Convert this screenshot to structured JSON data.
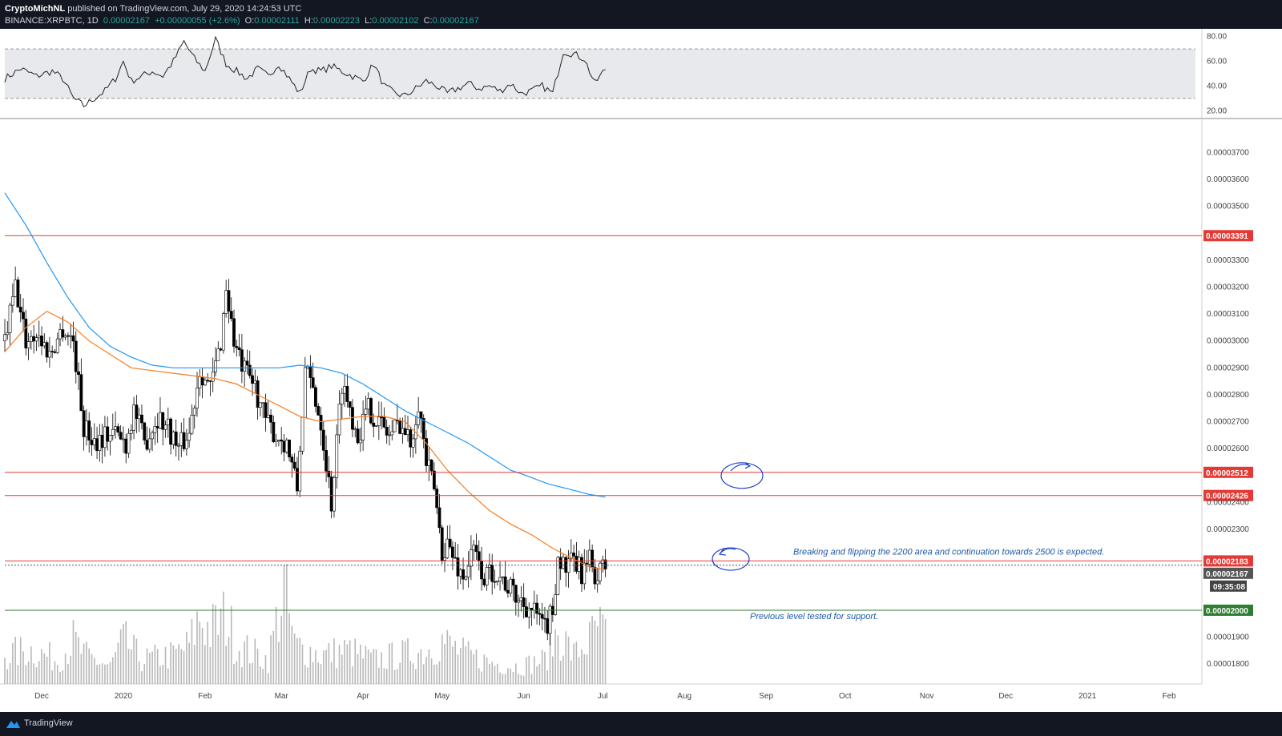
{
  "header": {
    "author": "CryptoMichNL",
    "published": "published on TradingView.com, July 29, 2020 14:24:53 UTC",
    "symbol": "BINANCE:XRPBTC, 1D",
    "last": "0.00002167",
    "change": "+0.00000055 (+2.6%)",
    "o_label": "O:",
    "o_value": "0.00002111",
    "h_label": "H:",
    "h_value": "0.00002223",
    "l_label": "L:",
    "l_value": "0.00002102",
    "c_label": "C:",
    "c_value": "0.00002167"
  },
  "footer": {
    "brand": "TradingView"
  },
  "colors": {
    "bull": "#ffffff",
    "bear": "#000000",
    "ma_fast": "#f57c20",
    "ma_slow": "#2196f3",
    "resistance": "#e53935",
    "support": "#2e7d32",
    "current": "#555555",
    "rsi_band": "#e8e9ec",
    "annotation": "#1f3fcf"
  },
  "chart_data": {
    "type": "candlestick",
    "price_axis": {
      "min": 1.75e-05,
      "max": 3.82e-05,
      "ticks": [
        "0.00003700",
        "0.00003600",
        "0.00003500",
        "0.00003300",
        "0.00003200",
        "0.00003100",
        "0.00003000",
        "0.00002900",
        "0.00002800",
        "0.00002700",
        "0.00002600",
        "0.00002400",
        "0.00002300",
        "0.00001900",
        "0.00001800"
      ],
      "tick_values": [
        3.7e-05,
        3.6e-05,
        3.5e-05,
        3.3e-05,
        3.2e-05,
        3.1e-05,
        3e-05,
        2.9e-05,
        2.8e-05,
        2.7e-05,
        2.6e-05,
        2.4e-05,
        2.3e-05,
        1.9e-05,
        1.8e-05
      ]
    },
    "time_axis": {
      "labels": [
        "Dec",
        "2020",
        "Feb",
        "Mar",
        "Apr",
        "May",
        "Jun",
        "Jul",
        "Aug",
        "Sep",
        "Oct",
        "Nov",
        "Dec",
        "2021",
        "Feb"
      ],
      "label_day_index": [
        14,
        45,
        76,
        105,
        136,
        166,
        197,
        227,
        258,
        289,
        319,
        350,
        380,
        411,
        442
      ]
    },
    "levels": [
      {
        "label": "0.00003391",
        "value": 3.391e-05,
        "kind": "resistance"
      },
      {
        "label": "0.00002512",
        "value": 2.512e-05,
        "kind": "resistance"
      },
      {
        "label": "0.00002426",
        "value": 2.426e-05,
        "kind": "resistance"
      },
      {
        "label": "0.00002183",
        "value": 2.183e-05,
        "kind": "resistance"
      },
      {
        "label": "0.00002000",
        "value": 2e-05,
        "kind": "support"
      }
    ],
    "current_price": {
      "label": "0.00002167",
      "value": 2.167e-05,
      "countdown": "09:35:08"
    },
    "annotations": [
      {
        "text": "Breaking and flipping the 2200 area and continuation towards 2500 is expected.",
        "price": 2.21e-05
      },
      {
        "text": "Previous level tested for support.",
        "price": 1.97e-05
      }
    ],
    "close_anchors": [
      [
        0,
        3e-05
      ],
      [
        4,
        3.2e-05
      ],
      [
        8,
        3e-05
      ],
      [
        12,
        3.03e-05
      ],
      [
        17,
        2.95e-05
      ],
      [
        22,
        3.05e-05
      ],
      [
        26,
        3e-05
      ],
      [
        30,
        2.68e-05
      ],
      [
        34,
        2.63e-05
      ],
      [
        38,
        2.65e-05
      ],
      [
        42,
        2.66e-05
      ],
      [
        46,
        2.62e-05
      ],
      [
        49,
        2.75e-05
      ],
      [
        53,
        2.62e-05
      ],
      [
        58,
        2.72e-05
      ],
      [
        62,
        2.68e-05
      ],
      [
        66,
        2.6e-05
      ],
      [
        70,
        2.66e-05
      ],
      [
        74,
        2.9e-05
      ],
      [
        78,
        2.82e-05
      ],
      [
        82,
        3e-05
      ],
      [
        84,
        3.2e-05
      ],
      [
        87,
        3e-05
      ],
      [
        90,
        2.9e-05
      ],
      [
        95,
        2.83e-05
      ],
      [
        99,
        2.7e-05
      ],
      [
        103,
        2.65e-05
      ],
      [
        107,
        2.62e-05
      ],
      [
        111,
        2.45e-05
      ],
      [
        114,
        2.89e-05
      ],
      [
        117,
        2.82e-05
      ],
      [
        120,
        2.7e-05
      ],
      [
        124,
        2.4e-05
      ],
      [
        128,
        2.85e-05
      ],
      [
        131,
        2.75e-05
      ],
      [
        134,
        2.65e-05
      ],
      [
        138,
        2.75e-05
      ],
      [
        142,
        2.7e-05
      ],
      [
        146,
        2.65e-05
      ],
      [
        150,
        2.7e-05
      ],
      [
        154,
        2.62e-05
      ],
      [
        157,
        2.78e-05
      ],
      [
        160,
        2.55e-05
      ],
      [
        163,
        2.45e-05
      ],
      [
        166,
        2.22e-05
      ],
      [
        168,
        2.25e-05
      ],
      [
        170,
        2.2e-05
      ],
      [
        174,
        2.12e-05
      ],
      [
        178,
        2.22e-05
      ],
      [
        182,
        2.12e-05
      ],
      [
        186,
        2.15e-05
      ],
      [
        190,
        2.1e-05
      ],
      [
        194,
        2.05e-05
      ],
      [
        198,
        2.02e-05
      ],
      [
        202,
        1.98e-05
      ],
      [
        204,
        1.93e-05
      ],
      [
        206,
        1.95e-05
      ],
      [
        208,
        2e-05
      ],
      [
        210,
        2.2e-05
      ],
      [
        213,
        2.15e-05
      ],
      [
        216,
        2.18e-05
      ],
      [
        219,
        2.14e-05
      ],
      [
        222,
        2.18e-05
      ],
      [
        225,
        2.12e-05
      ],
      [
        227,
        2.16e-05
      ]
    ],
    "ma_fast": [
      [
        0,
        2.96e-05
      ],
      [
        8,
        3.05e-05
      ],
      [
        16,
        3.11e-05
      ],
      [
        24,
        3.07e-05
      ],
      [
        32,
        3e-05
      ],
      [
        40,
        2.95e-05
      ],
      [
        48,
        2.9e-05
      ],
      [
        56,
        2.89e-05
      ],
      [
        64,
        2.88e-05
      ],
      [
        72,
        2.87e-05
      ],
      [
        80,
        2.86e-05
      ],
      [
        88,
        2.84e-05
      ],
      [
        96,
        2.8e-05
      ],
      [
        104,
        2.76e-05
      ],
      [
        112,
        2.72e-05
      ],
      [
        120,
        2.7e-05
      ],
      [
        128,
        2.71e-05
      ],
      [
        136,
        2.72e-05
      ],
      [
        144,
        2.72e-05
      ],
      [
        152,
        2.7e-05
      ],
      [
        160,
        2.62e-05
      ],
      [
        168,
        2.52e-05
      ],
      [
        176,
        2.44e-05
      ],
      [
        184,
        2.37e-05
      ],
      [
        192,
        2.32e-05
      ],
      [
        200,
        2.28e-05
      ],
      [
        208,
        2.23e-05
      ],
      [
        216,
        2.19e-05
      ],
      [
        222,
        2.16e-05
      ],
      [
        228,
        2.15e-05
      ]
    ],
    "ma_slow": [
      [
        0,
        3.55e-05
      ],
      [
        8,
        3.43e-05
      ],
      [
        16,
        3.29e-05
      ],
      [
        24,
        3.16e-05
      ],
      [
        32,
        3.05e-05
      ],
      [
        40,
        2.98e-05
      ],
      [
        48,
        2.94e-05
      ],
      [
        56,
        2.91e-05
      ],
      [
        64,
        2.9e-05
      ],
      [
        72,
        2.9e-05
      ],
      [
        80,
        2.9e-05
      ],
      [
        88,
        2.9e-05
      ],
      [
        96,
        2.9e-05
      ],
      [
        104,
        2.9e-05
      ],
      [
        112,
        2.91e-05
      ],
      [
        120,
        2.9e-05
      ],
      [
        128,
        2.88e-05
      ],
      [
        136,
        2.84e-05
      ],
      [
        144,
        2.79e-05
      ],
      [
        152,
        2.74e-05
      ],
      [
        160,
        2.7e-05
      ],
      [
        168,
        2.66e-05
      ],
      [
        176,
        2.62e-05
      ],
      [
        184,
        2.57e-05
      ],
      [
        192,
        2.52e-05
      ],
      [
        198,
        2.5e-05
      ],
      [
        206,
        2.47e-05
      ],
      [
        214,
        2.45e-05
      ],
      [
        222,
        2.43e-05
      ],
      [
        228,
        2.42e-05
      ]
    ],
    "rsi": {
      "ticks": [
        "80.00",
        "60.00",
        "40.00",
        "20.00"
      ],
      "tick_values": [
        80,
        60,
        40,
        20
      ],
      "overbought": 70,
      "oversold": 30,
      "anchors": [
        [
          0,
          46
        ],
        [
          6,
          54
        ],
        [
          12,
          48
        ],
        [
          18,
          52
        ],
        [
          22,
          46
        ],
        [
          26,
          30
        ],
        [
          30,
          24
        ],
        [
          34,
          30
        ],
        [
          38,
          36
        ],
        [
          42,
          46
        ],
        [
          45,
          60
        ],
        [
          48,
          44
        ],
        [
          52,
          48
        ],
        [
          56,
          52
        ],
        [
          60,
          48
        ],
        [
          64,
          60
        ],
        [
          68,
          76
        ],
        [
          72,
          62
        ],
        [
          76,
          52
        ],
        [
          80,
          78
        ],
        [
          84,
          58
        ],
        [
          88,
          52
        ],
        [
          92,
          46
        ],
        [
          96,
          54
        ],
        [
          100,
          48
        ],
        [
          104,
          58
        ],
        [
          108,
          46
        ],
        [
          112,
          34
        ],
        [
          116,
          54
        ],
        [
          120,
          52
        ],
        [
          124,
          56
        ],
        [
          128,
          52
        ],
        [
          132,
          48
        ],
        [
          136,
          44
        ],
        [
          140,
          58
        ],
        [
          144,
          40
        ],
        [
          148,
          34
        ],
        [
          152,
          32
        ],
        [
          156,
          38
        ],
        [
          160,
          44
        ],
        [
          164,
          40
        ],
        [
          168,
          34
        ],
        [
          172,
          38
        ],
        [
          176,
          42
        ],
        [
          180,
          38
        ],
        [
          184,
          40
        ],
        [
          188,
          36
        ],
        [
          192,
          42
        ],
        [
          196,
          34
        ],
        [
          200,
          36
        ],
        [
          204,
          40
        ],
        [
          208,
          34
        ],
        [
          212,
          68
        ],
        [
          216,
          66
        ],
        [
          220,
          62
        ],
        [
          224,
          42
        ],
        [
          228,
          54
        ]
      ]
    },
    "volume": {
      "anchors": [
        [
          0,
          0.3
        ],
        [
          10,
          0.35
        ],
        [
          20,
          0.25
        ],
        [
          26,
          0.45
        ],
        [
          30,
          0.3
        ],
        [
          40,
          0.18
        ],
        [
          45,
          0.45
        ],
        [
          52,
          0.25
        ],
        [
          64,
          0.3
        ],
        [
          70,
          0.4
        ],
        [
          74,
          0.7
        ],
        [
          78,
          0.55
        ],
        [
          84,
          0.7
        ],
        [
          88,
          0.4
        ],
        [
          100,
          0.25
        ],
        [
          106,
          1.0
        ],
        [
          110,
          0.4
        ],
        [
          120,
          0.3
        ],
        [
          130,
          0.35
        ],
        [
          140,
          0.25
        ],
        [
          150,
          0.3
        ],
        [
          160,
          0.35
        ],
        [
          166,
          0.45
        ],
        [
          175,
          0.3
        ],
        [
          185,
          0.22
        ],
        [
          195,
          0.18
        ],
        [
          205,
          0.25
        ],
        [
          210,
          0.55
        ],
        [
          216,
          0.3
        ],
        [
          222,
          0.45
        ],
        [
          225,
          0.6
        ],
        [
          228,
          0.5
        ]
      ]
    }
  }
}
